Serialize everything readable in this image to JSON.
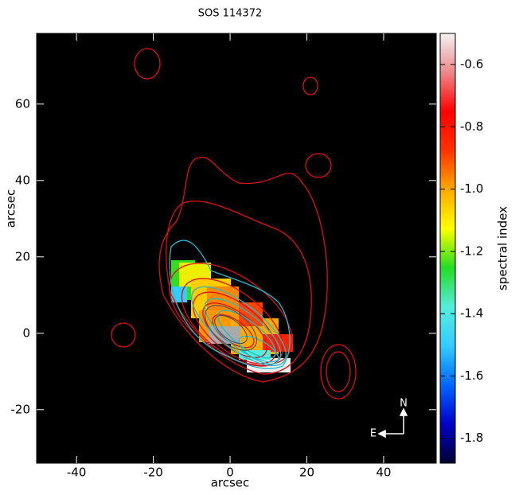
{
  "chart_data": {
    "type": "image",
    "title": "SOS 114372",
    "xlabel": "arcsec",
    "ylabel": "arcsec",
    "xlim": [
      -50.4,
      53.7
    ],
    "xticks": [
      -40,
      -20,
      0,
      20,
      40
    ],
    "ylim": [
      -34,
      78.5
    ],
    "yticks": [
      -20,
      0,
      20,
      40,
      60
    ],
    "colorbar_label": "spectral index",
    "clim": [
      -1.88,
      -0.5
    ],
    "cticks": [
      -1.8,
      -1.6,
      -1.4,
      -1.2,
      {
        "value": -1.0,
        "label": "-1.0"
      },
      -0.8,
      -0.6
    ],
    "colormap": [
      "#000033",
      "#0000c8",
      "#0066ff",
      "#33ccff",
      "#55eedd",
      "#22dd22",
      "#ffff00",
      "#ffaa00",
      "#ff3300",
      "#ff0000",
      "#ee8888",
      "#f2f2f2"
    ],
    "compass": {
      "north": "N",
      "east": "E"
    }
  }
}
